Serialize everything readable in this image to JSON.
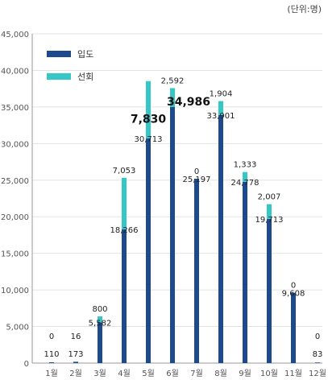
{
  "unit_label": "(단위:명)",
  "colors": {
    "entry": "#1c4a8c",
    "cruise": "#35c6c6",
    "grid": "#e3e3e3",
    "axis": "#999999"
  },
  "chart_data": {
    "type": "bar",
    "stacked": true,
    "categories": [
      "1월",
      "2월",
      "3월",
      "4월",
      "5월",
      "6월",
      "7월",
      "8월",
      "9월",
      "10월",
      "11월",
      "12월"
    ],
    "series": [
      {
        "name": "입도",
        "values": [
          110,
          173,
          5582,
          18266,
          30713,
          34986,
          25197,
          33901,
          24778,
          19713,
          9608,
          83
        ]
      },
      {
        "name": "선회",
        "values": [
          0,
          16,
          800,
          7053,
          7830,
          2592,
          0,
          1904,
          1333,
          2007,
          0,
          0
        ]
      }
    ],
    "value_labels": {
      "entry": [
        "110",
        "173",
        "5,582",
        "18,266",
        "30,713",
        "34,986",
        "25,197",
        "33,901",
        "24,778",
        "19,713",
        "9,608",
        "83"
      ],
      "cruise": [
        "0",
        "16",
        "800",
        "7,053",
        "7,830",
        "2,592",
        "0",
        "1,904",
        "1,333",
        "2,007",
        "0",
        "0"
      ]
    },
    "emphasized_labels": [
      "5월:선회",
      "6월:입도"
    ],
    "ylim": [
      0,
      45000
    ],
    "yticks": [
      "0",
      "5,000",
      "10,000",
      "15,000",
      "20,000",
      "25,000",
      "30,000",
      "35,000",
      "40,000",
      "45,000"
    ],
    "grid": true,
    "legend_position": "top-left"
  }
}
